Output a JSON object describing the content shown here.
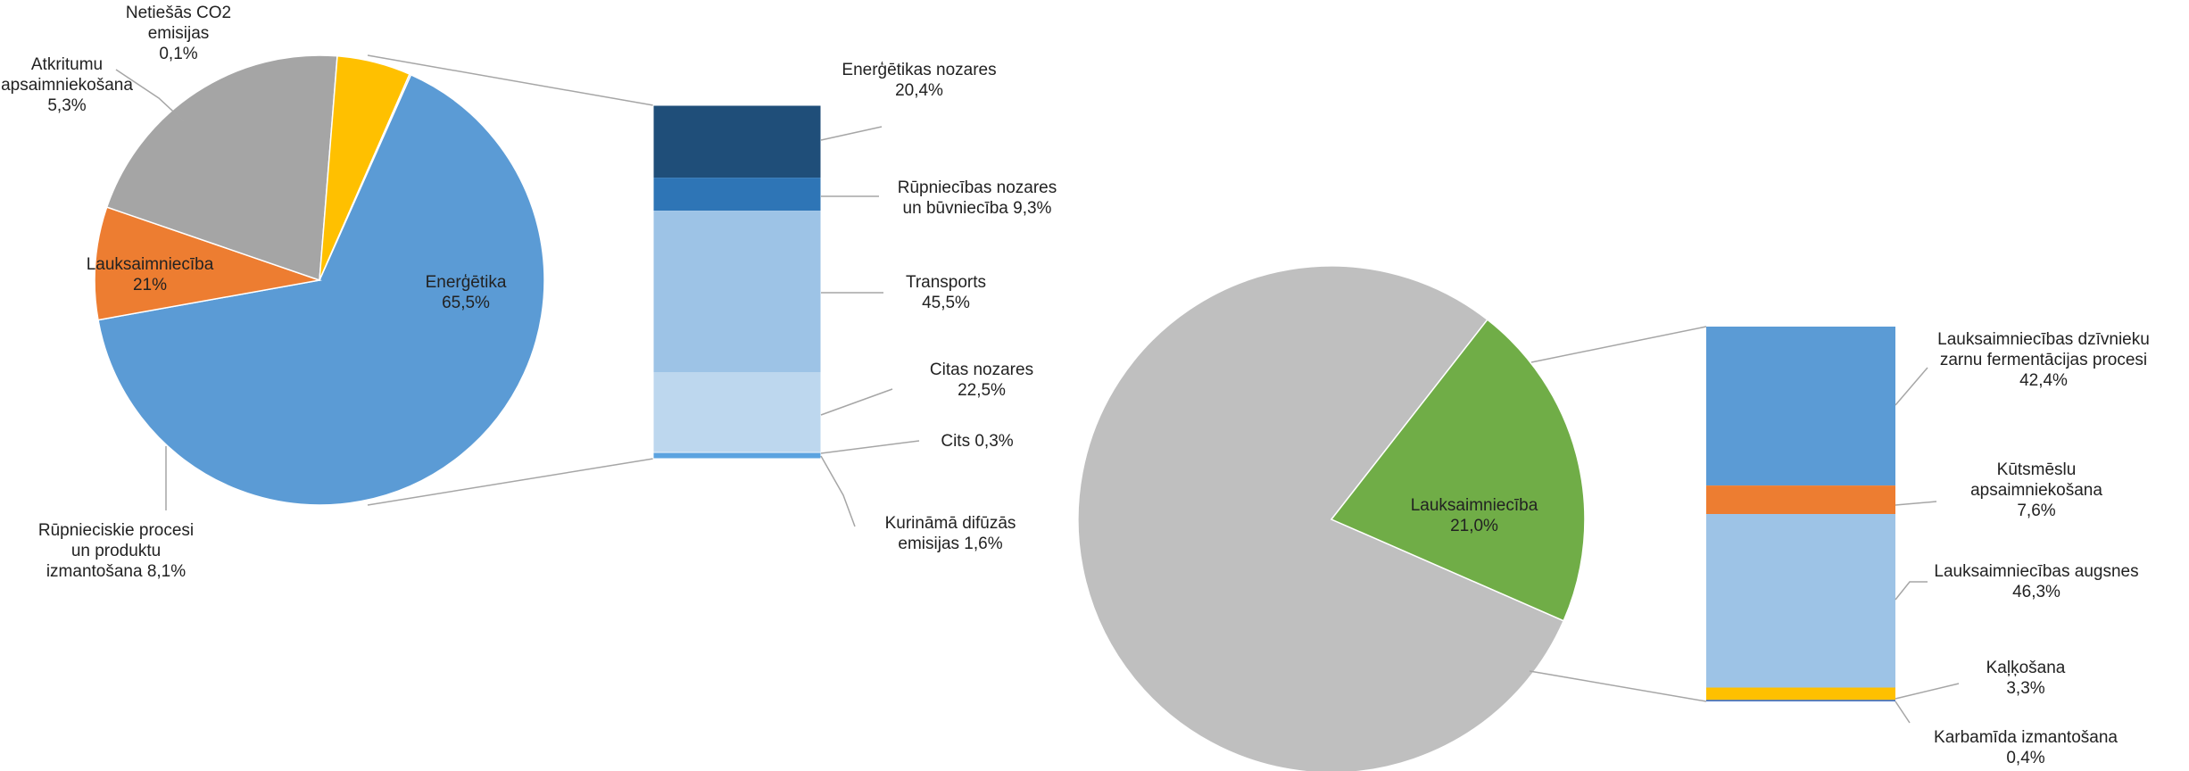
{
  "chart_data": [
    {
      "type": "pie",
      "slices": [
        {
          "label": "Enerģētika",
          "value_text": "65,5%",
          "value": 65.5,
          "color": "#5B9BD5"
        },
        {
          "label": "Rūpnieciskie procesi un produktu izmantošana",
          "value_text": "8,1%",
          "value": 8.1,
          "color": "#ED7D31"
        },
        {
          "label": "Lauksaimniecība",
          "value_text": "21%",
          "value": 21.0,
          "color": "#A5A5A5"
        },
        {
          "label": "Atkritumu apsaimniekošana",
          "value_text": "5,3%",
          "value": 5.3,
          "color": "#FFC000"
        },
        {
          "label": "Netiešās CO2 emisijas",
          "value_text": "0,1%",
          "value": 0.1,
          "color": "#4472C4"
        }
      ],
      "breakdown_of": "Enerģētika",
      "breakdown": [
        {
          "label": "Enerģētikas nozares",
          "value_text": "20,4%",
          "value": 20.4,
          "color": "#1F4E79"
        },
        {
          "label": "Rūpniecības nozares un būvniecība",
          "value_text": "9,3%",
          "value": 9.3,
          "color": "#2E75B6"
        },
        {
          "label": "Transports",
          "value_text": "45,5%",
          "value": 45.5,
          "color": "#9DC3E6"
        },
        {
          "label": "Citas nozares",
          "value_text": "22,5%",
          "value": 22.5,
          "color": "#BDD7EE"
        },
        {
          "label": "Cits",
          "value_text": "0,3%",
          "value": 0.3,
          "color": "#DEEBF7"
        },
        {
          "label": "Kurināmā difūzās emisijas",
          "value_text": "1,6%",
          "value": 1.6,
          "color": "#5BA3E0"
        }
      ]
    },
    {
      "type": "pie",
      "slices": [
        {
          "label": "Lauksaimniecība",
          "value_text": "21,0%",
          "value": 21.0,
          "color": "#70AD47"
        },
        {
          "label": "",
          "value_text": "",
          "value": 79.0,
          "color": "#BFBFBF"
        }
      ],
      "breakdown_of": "Lauksaimniecība",
      "breakdown": [
        {
          "label": "Lauksaimniecības dzīvnieku zarnu fermentācijas procesi",
          "value_text": "42,4%",
          "value": 42.4,
          "color": "#5B9BD5"
        },
        {
          "label": "Kūtsmēslu apsaimniekošana",
          "value_text": "7,6%",
          "value": 7.6,
          "color": "#ED7D31"
        },
        {
          "label": "Lauksaimniecības augsnes",
          "value_text": "46,3%",
          "value": 46.3,
          "color": "#9DC3E6"
        },
        {
          "label": "Kaļķošana",
          "value_text": "3,3%",
          "value": 3.3,
          "color": "#FFC000"
        },
        {
          "label": "Karbamīda izmantošana",
          "value_text": "0,4%",
          "value": 0.4,
          "color": "#4472C4"
        }
      ]
    }
  ]
}
